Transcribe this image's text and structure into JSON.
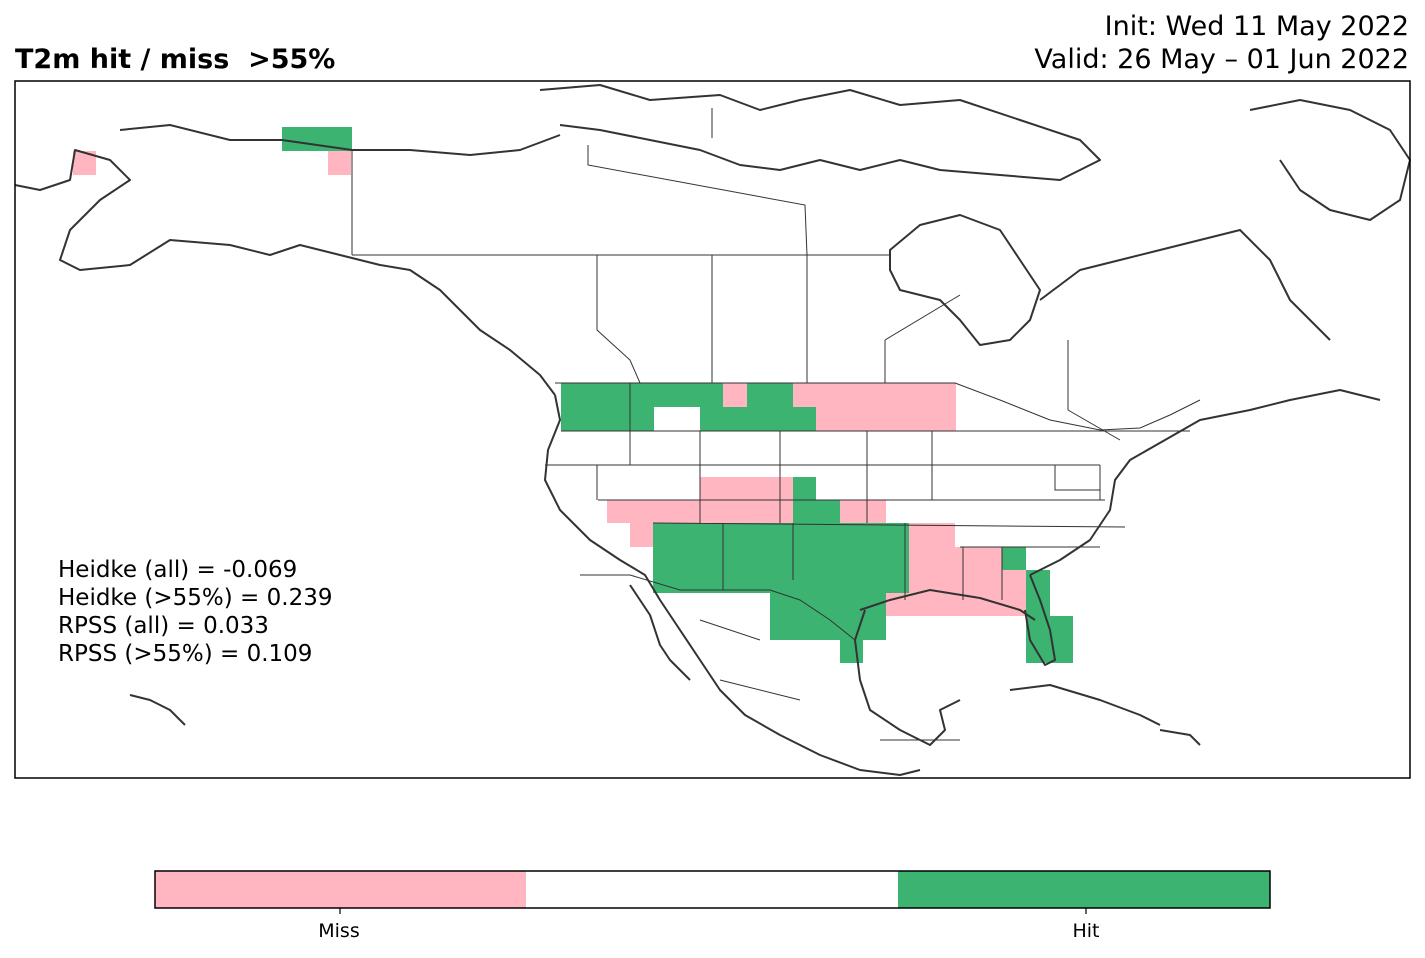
{
  "title": "T2m hit / miss  >55%",
  "init": "Init: Wed 11 May 2022",
  "valid": "Valid: 26 May – 01 Jun 2022",
  "stats": [
    "Heidke (all) = -0.069",
    "Heidke (>55%) = 0.239",
    "RPSS (all) = 0.033",
    "RPSS (>55%) = 0.109"
  ],
  "colorbar": {
    "labels": [
      "Miss",
      "Hit"
    ],
    "colors": {
      "miss": "#ffb6c1",
      "neutral": "#ffffff",
      "hit": "#3cb371"
    }
  },
  "colors": {
    "outline": "#333333",
    "frame": "#000000"
  }
}
